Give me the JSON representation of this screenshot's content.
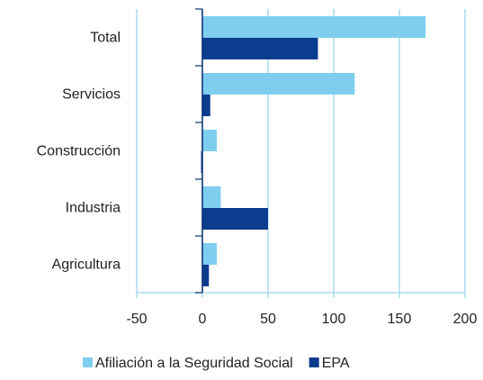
{
  "chart_data": {
    "type": "bar",
    "orientation": "horizontal",
    "categories": [
      "Total",
      "Servicios",
      "Construcción",
      "Industria",
      "Agricultura"
    ],
    "series": [
      {
        "name": "Afiliación a la Seguridad Social",
        "color": "#7fcef0",
        "values": [
          170,
          116,
          11,
          14,
          11
        ]
      },
      {
        "name": "EPA",
        "color": "#0c3c8e",
        "values": [
          88,
          6,
          -1,
          50,
          5
        ]
      }
    ],
    "xlim": [
      -50,
      200
    ],
    "xticks": [
      -50,
      0,
      50,
      100,
      150,
      200
    ],
    "grid": true,
    "legend": "bottom"
  }
}
